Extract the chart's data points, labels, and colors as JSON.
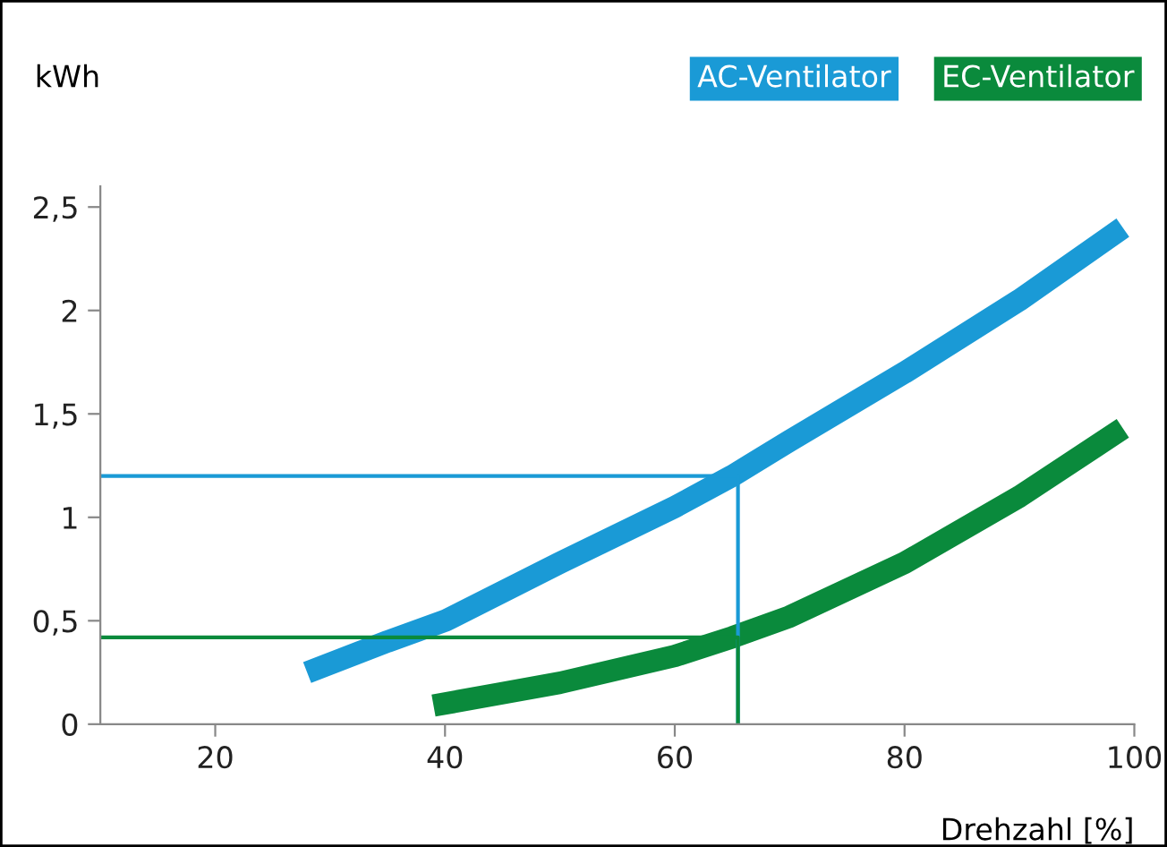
{
  "chart_data": {
    "type": "line",
    "ylabel": "kWh",
    "xlabel": "Drehzahl [%]",
    "xlim": [
      10,
      100
    ],
    "xticks": [
      20,
      40,
      60,
      80,
      100
    ],
    "ylim": [
      0,
      2.6
    ],
    "yticks": [
      {
        "value": 0,
        "label": "0"
      },
      {
        "value": 0.5,
        "label": "0,5"
      },
      {
        "value": 1,
        "label": "1"
      },
      {
        "value": 1.5,
        "label": "1,5"
      },
      {
        "value": 2,
        "label": "2"
      },
      {
        "value": 2.5,
        "label": "2,5"
      }
    ],
    "grid": false,
    "legend": "top right",
    "marker": "none",
    "line_style": "solid",
    "series": [
      {
        "name": "AC-Ventilator",
        "color": "#1a9ad6",
        "x": [
          28,
          35,
          40,
          50,
          60,
          65,
          70,
          80,
          90,
          99
        ],
        "values": [
          0.25,
          0.4,
          0.5,
          0.78,
          1.05,
          1.2,
          1.37,
          1.7,
          2.05,
          2.4
        ]
      },
      {
        "name": "EC-Ventilator",
        "color": "#0a8a3c",
        "x": [
          39,
          50,
          60,
          65,
          70,
          80,
          90,
          99
        ],
        "values": [
          0.09,
          0.2,
          0.33,
          0.42,
          0.52,
          0.78,
          1.1,
          1.43
        ]
      },
      {
        "color": "#1a9ad6",
        "x": [
          10,
          65.5,
          65.5
        ],
        "values": [
          1.2,
          1.2,
          0
        ]
      },
      {
        "color": "#0a8a3c",
        "x": [
          10,
          65.5,
          65.5
        ],
        "values": [
          0.42,
          0.42,
          0
        ]
      }
    ]
  }
}
